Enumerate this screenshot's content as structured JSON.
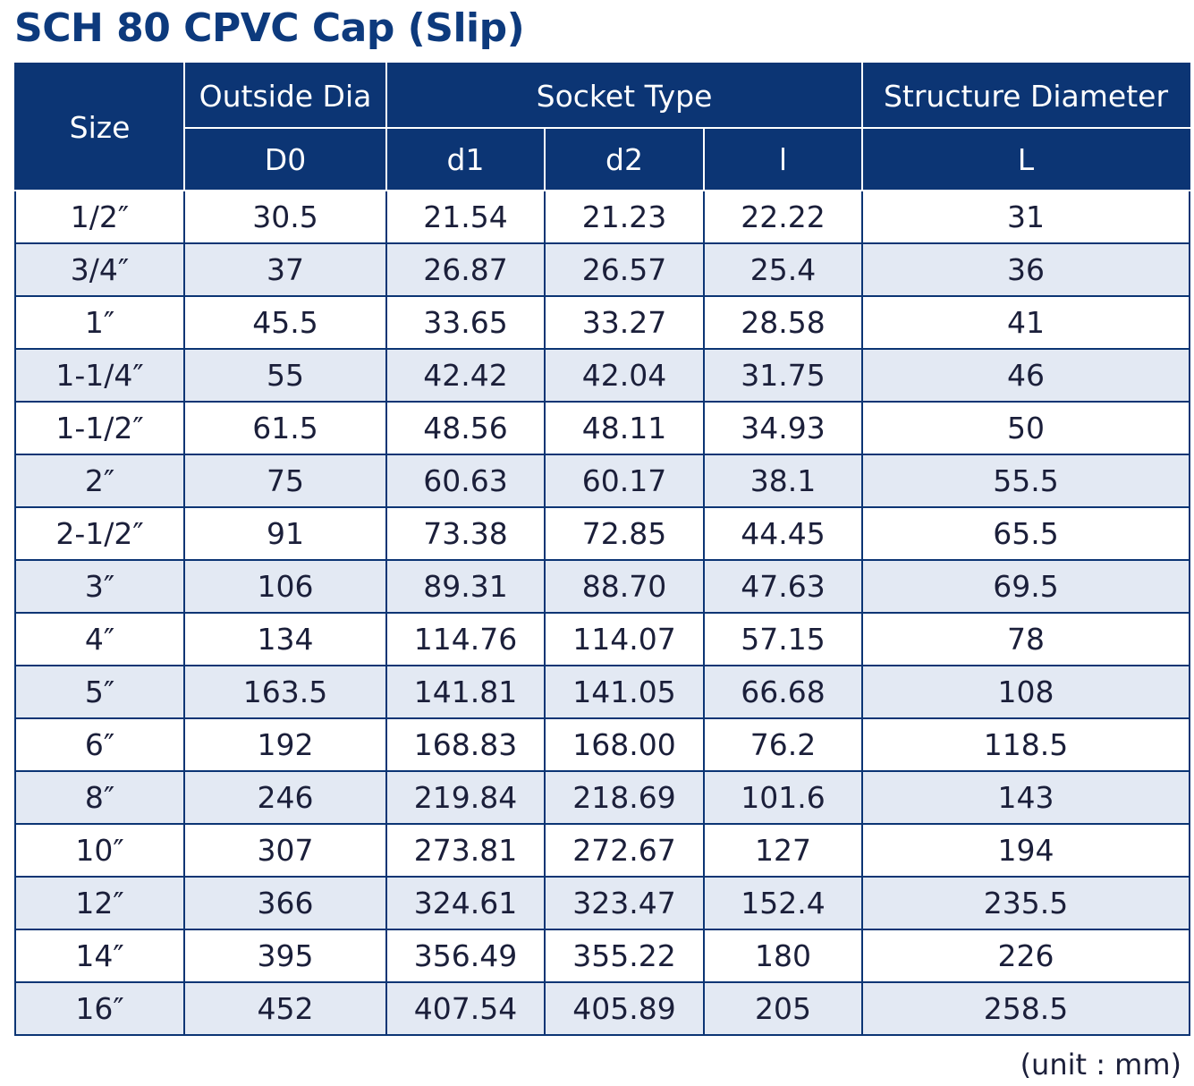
{
  "title": "SCH 80 CPVC Cap (Slip)",
  "colors": {
    "header_bg": "#0c3574",
    "title": "#0d3a7d",
    "stripe": "#e3e9f3",
    "border": "#0c3574"
  },
  "header": {
    "size": "Size",
    "outside_dia": "Outside Dia",
    "socket_type": "Socket Type",
    "structure_diameter": "Structure Diameter",
    "sub": {
      "d0": "D0",
      "d1": "d1",
      "d2": "d2",
      "l_small": "l",
      "l_big": "L"
    }
  },
  "rows": [
    {
      "size": "1/2″",
      "d0": "30.5",
      "d1": "21.54",
      "d2": "21.23",
      "l": "22.22",
      "L": "31"
    },
    {
      "size": "3/4″",
      "d0": "37",
      "d1": "26.87",
      "d2": "26.57",
      "l": "25.4",
      "L": "36"
    },
    {
      "size": "1″",
      "d0": "45.5",
      "d1": "33.65",
      "d2": "33.27",
      "l": "28.58",
      "L": "41"
    },
    {
      "size": "1-1/4″",
      "d0": "55",
      "d1": "42.42",
      "d2": "42.04",
      "l": "31.75",
      "L": "46"
    },
    {
      "size": "1-1/2″",
      "d0": "61.5",
      "d1": "48.56",
      "d2": "48.11",
      "l": "34.93",
      "L": "50"
    },
    {
      "size": "2″",
      "d0": "75",
      "d1": "60.63",
      "d2": "60.17",
      "l": "38.1",
      "L": "55.5"
    },
    {
      "size": "2-1/2″",
      "d0": "91",
      "d1": "73.38",
      "d2": "72.85",
      "l": "44.45",
      "L": "65.5"
    },
    {
      "size": "3″",
      "d0": "106",
      "d1": "89.31",
      "d2": "88.70",
      "l": "47.63",
      "L": "69.5"
    },
    {
      "size": "4″",
      "d0": "134",
      "d1": "114.76",
      "d2": "114.07",
      "l": "57.15",
      "L": "78"
    },
    {
      "size": "5″",
      "d0": "163.5",
      "d1": "141.81",
      "d2": "141.05",
      "l": "66.68",
      "L": "108"
    },
    {
      "size": "6″",
      "d0": "192",
      "d1": "168.83",
      "d2": "168.00",
      "l": "76.2",
      "L": "118.5"
    },
    {
      "size": "8″",
      "d0": "246",
      "d1": "219.84",
      "d2": "218.69",
      "l": "101.6",
      "L": "143"
    },
    {
      "size": "10″",
      "d0": "307",
      "d1": "273.81",
      "d2": "272.67",
      "l": "127",
      "L": "194"
    },
    {
      "size": "12″",
      "d0": "366",
      "d1": "324.61",
      "d2": "323.47",
      "l": "152.4",
      "L": "235.5"
    },
    {
      "size": "14″",
      "d0": "395",
      "d1": "356.49",
      "d2": "355.22",
      "l": "180",
      "L": "226"
    },
    {
      "size": "16″",
      "d0": "452",
      "d1": "407.54",
      "d2": "405.89",
      "l": "205",
      "L": "258.5"
    }
  ],
  "unit_note": "(unit : mm)"
}
